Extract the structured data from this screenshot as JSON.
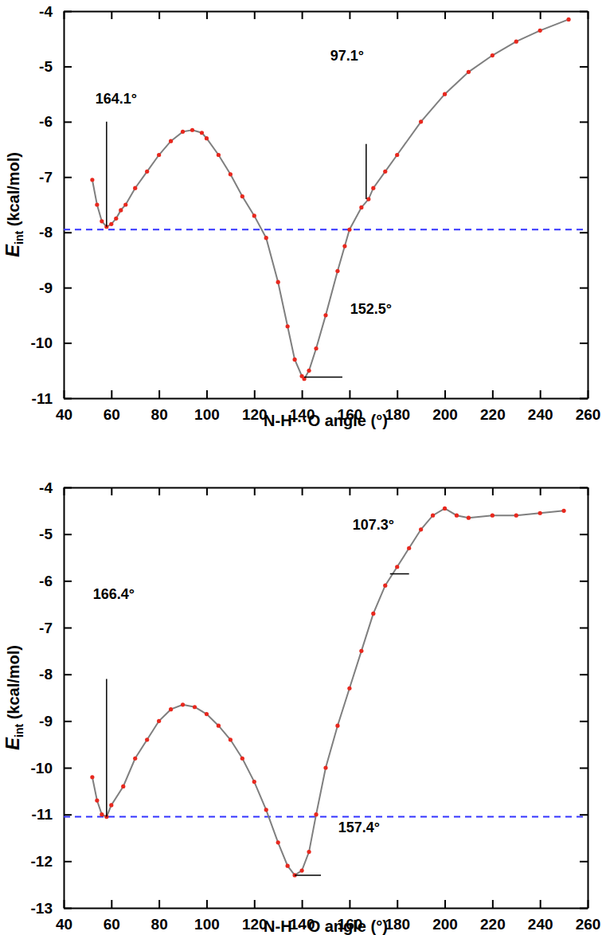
{
  "chart_data": [
    {
      "type": "line",
      "xlabel": "N-H···O angle (°)",
      "ylabel": "Eint (kcal/mol)",
      "xlim": [
        40,
        260
      ],
      "xticks": [
        40,
        60,
        80,
        100,
        120,
        140,
        160,
        180,
        200,
        220,
        240,
        260
      ],
      "ylim": [
        -11,
        -4
      ],
      "yticks": [
        -11,
        -10,
        -9,
        -8,
        -7,
        -6,
        -5,
        -4
      ],
      "hline": -7.95,
      "x": [
        52,
        54,
        56,
        58,
        60,
        62,
        64,
        66,
        70,
        75,
        80,
        85,
        90,
        94,
        98,
        100,
        105,
        110,
        115,
        120,
        125,
        130,
        134,
        137,
        140,
        141,
        143,
        146,
        150,
        155,
        158,
        160,
        165,
        168,
        170,
        175,
        180,
        190,
        200,
        210,
        220,
        230,
        240,
        252
      ],
      "series": [
        {
          "color": "#7f7f7f",
          "marker": "circle",
          "values": [
            -7.05,
            -7.5,
            -7.8,
            -7.9,
            -7.85,
            -7.75,
            -7.6,
            -7.5,
            -7.2,
            -6.9,
            -6.6,
            -6.35,
            -6.18,
            -6.15,
            -6.2,
            -6.3,
            -6.6,
            -6.95,
            -7.35,
            -7.7,
            -8.1,
            -8.9,
            -9.7,
            -10.3,
            -10.6,
            -10.65,
            -10.5,
            -10.1,
            -9.5,
            -8.7,
            -8.25,
            -7.95,
            -7.55,
            -7.4,
            -7.2,
            -6.9,
            -6.6,
            -6.0,
            -5.5,
            -5.1,
            -4.8,
            -4.55,
            -4.35,
            -4.15
          ]
        }
      ],
      "annotations": [
        {
          "text": "164.1°",
          "x": 62,
          "y": -5.6,
          "point": [
            58,
            -7.9
          ],
          "line_to": [
            58,
            -6.0
          ]
        },
        {
          "text": "97.1°",
          "x": 159,
          "y": -4.83,
          "point": [
            167,
            -7.4
          ],
          "line_to": [
            167,
            -6.4
          ]
        },
        {
          "text": "152.5°",
          "x": 169,
          "y": -9.4,
          "point": [
            141,
            -10.62
          ],
          "line_to": [
            157,
            -10.62
          ]
        }
      ]
    },
    {
      "type": "line",
      "xlabel": "N-H···O angle (°)",
      "ylabel": "Eint (kcal/mol)",
      "xlim": [
        40,
        260
      ],
      "xticks": [
        40,
        60,
        80,
        100,
        120,
        140,
        160,
        180,
        200,
        220,
        240,
        260
      ],
      "ylim": [
        -13,
        -4
      ],
      "yticks": [
        -13,
        -12,
        -11,
        -10,
        -9,
        -8,
        -7,
        -6,
        -5,
        -4
      ],
      "hline": -11.05,
      "x": [
        52,
        54,
        56,
        58,
        60,
        65,
        70,
        75,
        80,
        85,
        90,
        95,
        100,
        105,
        110,
        115,
        120,
        125,
        130,
        134,
        137,
        140,
        143,
        146,
        150,
        155,
        160,
        165,
        170,
        175,
        180,
        185,
        190,
        195,
        200,
        205,
        210,
        220,
        230,
        240,
        250
      ],
      "series": [
        {
          "color": "#7f7f7f",
          "marker": "circle",
          "values": [
            -10.2,
            -10.7,
            -11.0,
            -11.05,
            -10.8,
            -10.4,
            -9.8,
            -9.4,
            -9.0,
            -8.75,
            -8.65,
            -8.7,
            -8.85,
            -9.1,
            -9.4,
            -9.8,
            -10.3,
            -10.9,
            -11.6,
            -12.1,
            -12.3,
            -12.2,
            -11.8,
            -11.0,
            -10.0,
            -9.1,
            -8.3,
            -7.5,
            -6.7,
            -6.1,
            -5.7,
            -5.3,
            -4.9,
            -4.6,
            -4.45,
            -4.6,
            -4.65,
            -4.6,
            -4.6,
            -4.55,
            -4.5
          ]
        }
      ],
      "annotations": [
        {
          "text": "166.4°",
          "x": 61,
          "y": -6.3,
          "point": [
            58,
            -11.05
          ],
          "line_to": [
            58,
            -8.1
          ]
        },
        {
          "text": "107.3°",
          "x": 170,
          "y": -4.82,
          "point": [
            177,
            -5.85
          ],
          "line_to": [
            185,
            -5.85
          ]
        },
        {
          "text": "157.4°",
          "x": 164,
          "y": -11.3,
          "point": [
            137,
            -12.3
          ],
          "line_to": [
            148,
            -12.3
          ]
        }
      ]
    }
  ]
}
